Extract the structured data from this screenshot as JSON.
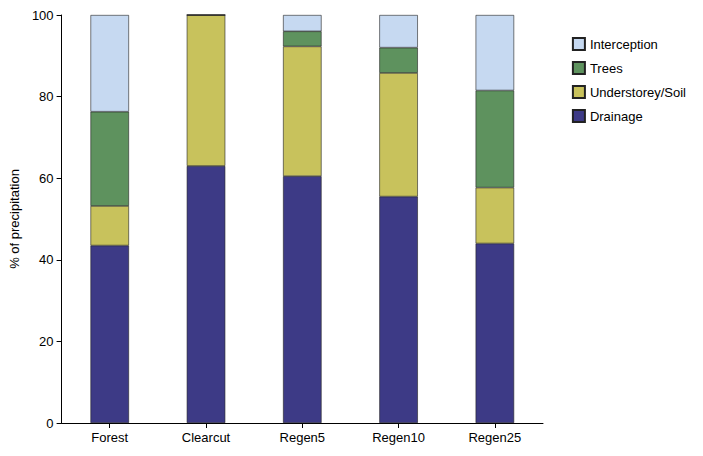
{
  "chart_data": {
    "type": "bar",
    "stacked": true,
    "legend": "right",
    "grid": false,
    "y_label": "% of precipitation",
    "categories": [
      "Forest",
      "Clearcut",
      "Regen5",
      "Regen10",
      "Regen25"
    ],
    "series": [
      {
        "name": "Drainage",
        "color": "#3d3a86",
        "values": [
          43.5,
          63,
          60.5,
          55.5,
          44
        ]
      },
      {
        "name": "Understorey/Soil",
        "color": "#c8c25c",
        "values": [
          9.7,
          37,
          31.8,
          30.3,
          13.7
        ]
      },
      {
        "name": "Trees",
        "color": "#5e925e",
        "values": [
          23.1,
          0,
          3.7,
          6.2,
          23.8
        ]
      },
      {
        "name": "Interception",
        "color": "#c6d9f1",
        "values": [
          23.7,
          0,
          4,
          8,
          18.5
        ]
      }
    ],
    "ylim": [
      0,
      100
    ],
    "yticks": [
      0,
      20,
      40,
      60,
      80,
      100
    ]
  }
}
